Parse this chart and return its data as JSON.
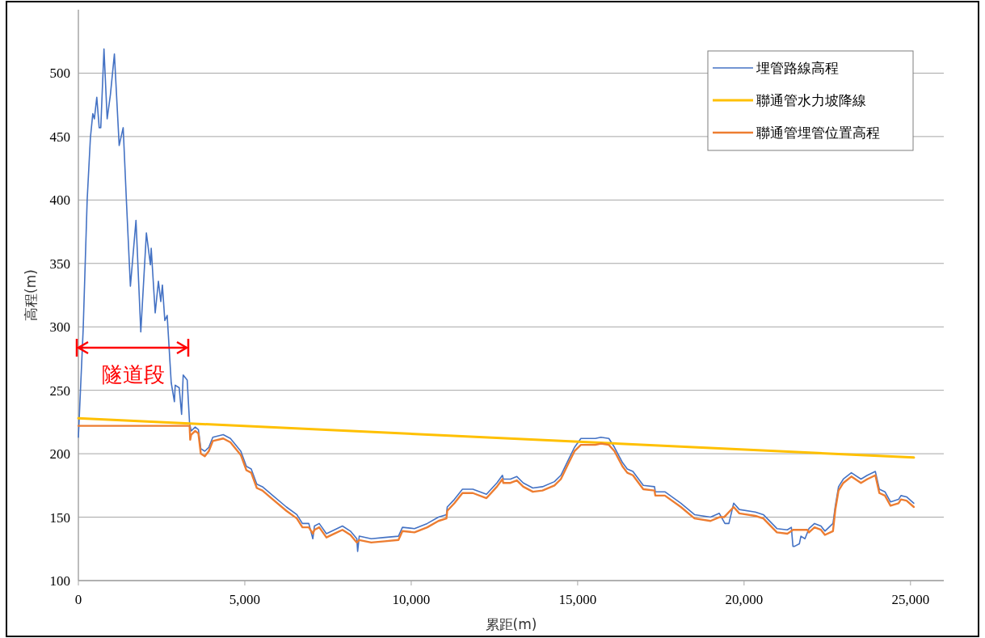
{
  "chart_data": {
    "type": "line",
    "xlabel": "累距(m)",
    "ylabel": "高程(m)",
    "xlim": [
      0,
      26000
    ],
    "ylim": [
      100,
      550
    ],
    "xticks": [
      0,
      {
        "value": 5000,
        "label": "5,000"
      },
      {
        "value": 10000,
        "label": "10,000"
      },
      {
        "value": 15000,
        "label": "15,000"
      },
      {
        "value": 20000,
        "label": "20,000"
      },
      {
        "value": 25000,
        "label": "25,000"
      }
    ],
    "yticks": [
      100,
      150,
      200,
      250,
      300,
      350,
      400,
      450,
      500
    ],
    "grid": "y",
    "legend": "top right",
    "marker": "none",
    "line_style": "solid",
    "series": [
      {
        "name": "埋管路線高程",
        "color": "#4472c4",
        "x": [
          0,
          144,
          264,
          361,
          433,
          481,
          553,
          625,
          673,
          769,
          865,
          962,
          1082,
          1226,
          1346,
          1442,
          1563,
          1731,
          1875,
          2043,
          2164,
          2188,
          2308,
          2404,
          2476,
          2524,
          2597,
          2668,
          2789,
          2885,
          2909,
          3029,
          3101,
          3149,
          3269,
          3341,
          3390,
          3510,
          3606,
          3678,
          3798,
          3918,
          4039,
          4351,
          4568,
          4880,
          5048,
          5193,
          5361,
          5529,
          5842,
          6250,
          6563,
          6731,
          6923,
          7044,
          7092,
          7236,
          7452,
          7693,
          7933,
          8173,
          8366,
          8390,
          8438,
          8798,
          9207,
          9616,
          9736,
          10097,
          10481,
          10818,
          11058,
          11082,
          11298,
          11539,
          11852,
          12260,
          12573,
          12741,
          12765,
          12981,
          13174,
          13366,
          13654,
          13943,
          14303,
          14496,
          14736,
          14905,
          15097,
          15530,
          15698,
          15938,
          16107,
          16347,
          16491,
          16660,
          16972,
          17309,
          17333,
          17621,
          18102,
          18511,
          18992,
          19256,
          19424,
          19544,
          19688,
          19857,
          20338,
          20578,
          20987,
          21300,
          21420,
          21468,
          21516,
          21660,
          21708,
          21829,
          21949,
          22117,
          22309,
          22429,
          22670,
          22742,
          22838,
          22982,
          23223,
          23512,
          23704,
          23944,
          24064,
          24232,
          24400,
          24641,
          24713,
          24881,
          25100
        ],
        "values": [
          213,
          298,
          400,
          449,
          468,
          464,
          481,
          457,
          457,
          519,
          464,
          483,
          515,
          443,
          457,
          400,
          332,
          384,
          296,
          374,
          349,
          362,
          311,
          336,
          320,
          333,
          305,
          309,
          256,
          241,
          254,
          252,
          231,
          262,
          258,
          224,
          218,
          221,
          219,
          204,
          202,
          205,
          213,
          215,
          212,
          202,
          190,
          188,
          176,
          174,
          167,
          158,
          152,
          145,
          145,
          133,
          143,
          145,
          137,
          140,
          143,
          139,
          133,
          123,
          135,
          133,
          134,
          135,
          142,
          141,
          145,
          150,
          152,
          158,
          164,
          172,
          172,
          168,
          177,
          183,
          180,
          180,
          182,
          177,
          173,
          174,
          178,
          183,
          196,
          205,
          212,
          212,
          213,
          212,
          205,
          193,
          188,
          186,
          175,
          174,
          170,
          170,
          161,
          152,
          150,
          153,
          145,
          145,
          161,
          156,
          154,
          152,
          141,
          140,
          142,
          127,
          127,
          129,
          135,
          133,
          141,
          145,
          143,
          139,
          145,
          159,
          174,
          180,
          185,
          180,
          183,
          186,
          172,
          170,
          162,
          164,
          167,
          166,
          161
        ]
      },
      {
        "name": "聯通管水力坡降線",
        "color": "#ffc000",
        "x": [
          0,
          25100
        ],
        "values": [
          228,
          197
        ]
      },
      {
        "name": "聯通管埋管位置高程",
        "color": "#ed7d31",
        "x": [
          0,
          3341,
          3360,
          3390,
          3510,
          3606,
          3678,
          3798,
          3918,
          4039,
          4351,
          4568,
          4880,
          5048,
          5193,
          5361,
          5529,
          5842,
          6250,
          6563,
          6731,
          6923,
          7044,
          7092,
          7236,
          7452,
          7693,
          7933,
          8173,
          8366,
          8438,
          8798,
          9207,
          9616,
          9736,
          10097,
          10481,
          10818,
          11058,
          11082,
          11298,
          11539,
          11852,
          12260,
          12573,
          12741,
          12765,
          12981,
          13174,
          13366,
          13654,
          13943,
          14303,
          14496,
          14736,
          14905,
          15097,
          15530,
          15698,
          15938,
          16107,
          16347,
          16491,
          16660,
          16972,
          17309,
          17333,
          17621,
          18102,
          18511,
          18992,
          19256,
          19400,
          19688,
          19857,
          20338,
          20578,
          20987,
          21300,
          21420,
          21468,
          21900,
          21949,
          22117,
          22309,
          22429,
          22670,
          22742,
          22838,
          22982,
          23223,
          23512,
          23704,
          23944,
          24064,
          24232,
          24400,
          24641,
          24713,
          24881,
          25100
        ],
        "values": [
          222,
          222,
          211,
          215,
          218,
          216,
          200,
          198,
          202,
          210,
          212,
          209,
          199,
          187,
          185,
          173,
          171,
          164,
          155,
          149,
          142,
          142,
          137,
          140,
          142,
          134,
          137,
          140,
          136,
          130,
          132,
          130,
          131,
          132,
          139,
          138,
          142,
          147,
          149,
          155,
          161,
          169,
          169,
          165,
          174,
          180,
          177,
          177,
          179,
          174,
          170,
          171,
          175,
          180,
          193,
          202,
          207,
          207,
          208,
          207,
          202,
          190,
          185,
          183,
          172,
          171,
          167,
          167,
          158,
          149,
          147,
          150,
          150,
          158,
          153,
          151,
          149,
          138,
          137,
          139,
          140,
          140,
          138,
          142,
          140,
          136,
          139,
          156,
          171,
          177,
          182,
          177,
          180,
          183,
          169,
          167,
          159,
          161,
          164,
          163,
          158
        ]
      }
    ],
    "annotations": [
      "隧道段"
    ]
  }
}
